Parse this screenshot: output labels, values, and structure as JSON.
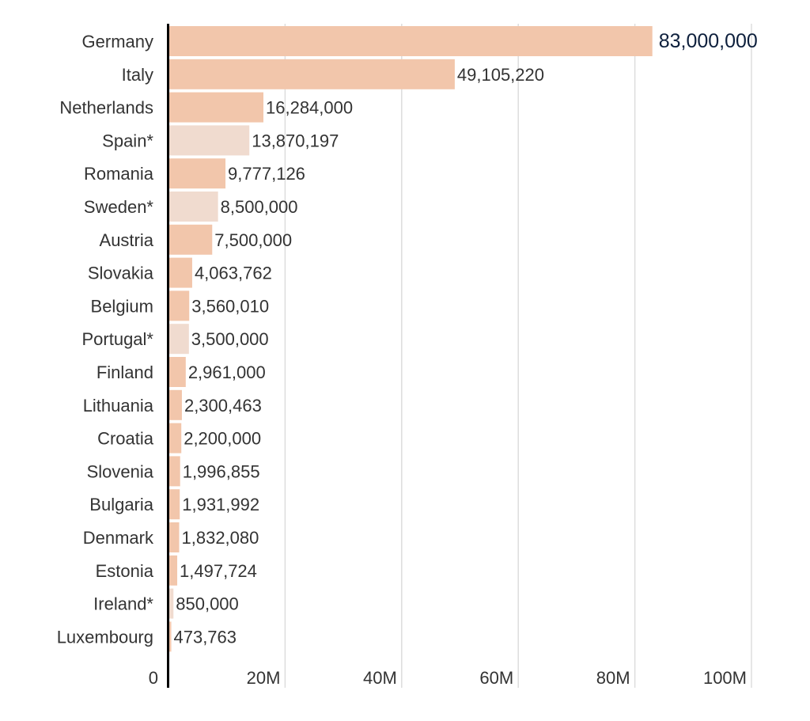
{
  "chart_data": {
    "type": "bar",
    "orientation": "horizontal",
    "categories": [
      "Germany",
      "Italy",
      "Netherlands",
      "Spain*",
      "Romania",
      "Sweden*",
      "Austria",
      "Slovakia",
      "Belgium",
      "Portugal*",
      "Finland",
      "Lithuania",
      "Croatia",
      "Slovenia",
      "Bulgaria",
      "Denmark",
      "Estonia",
      "Ireland*",
      "Luxembourg"
    ],
    "values": [
      83000000,
      49105220,
      16284000,
      13870197,
      9777126,
      8500000,
      7500000,
      4063762,
      3560010,
      3500000,
      2961000,
      2300463,
      2200000,
      1996855,
      1931992,
      1832080,
      1497724,
      850000,
      473763
    ],
    "value_labels": [
      "83,000,000",
      "49,105,220",
      "16,284,000",
      "13,870,197",
      "9,777,126",
      "8,500,000",
      "7,500,000",
      "4,063,762",
      "3,560,010",
      "3,500,000",
      "2,961,000",
      "2,300,463",
      "2,200,000",
      "1,996,855",
      "1,931,992",
      "1,832,080",
      "1,497,724",
      "850,000",
      "473,763"
    ],
    "estimated": [
      false,
      false,
      false,
      true,
      false,
      true,
      false,
      false,
      false,
      true,
      false,
      false,
      false,
      false,
      false,
      false,
      false,
      true,
      false
    ],
    "x_ticks": [
      0,
      20000000,
      40000000,
      60000000,
      80000000,
      100000000
    ],
    "x_tick_labels": [
      "0",
      "20M",
      "40M",
      "60M",
      "80M",
      "100M"
    ],
    "xlim": [
      0,
      100000000
    ],
    "grid": true,
    "title": "",
    "xlabel": "",
    "ylabel": "",
    "colors": {
      "bar": "#f2c6ab",
      "bar_estimated": "#f0dbcf",
      "text": "#333333",
      "highlight_text": "#0d1f3c",
      "grid": "#dddddd",
      "axis": "#000000"
    }
  }
}
